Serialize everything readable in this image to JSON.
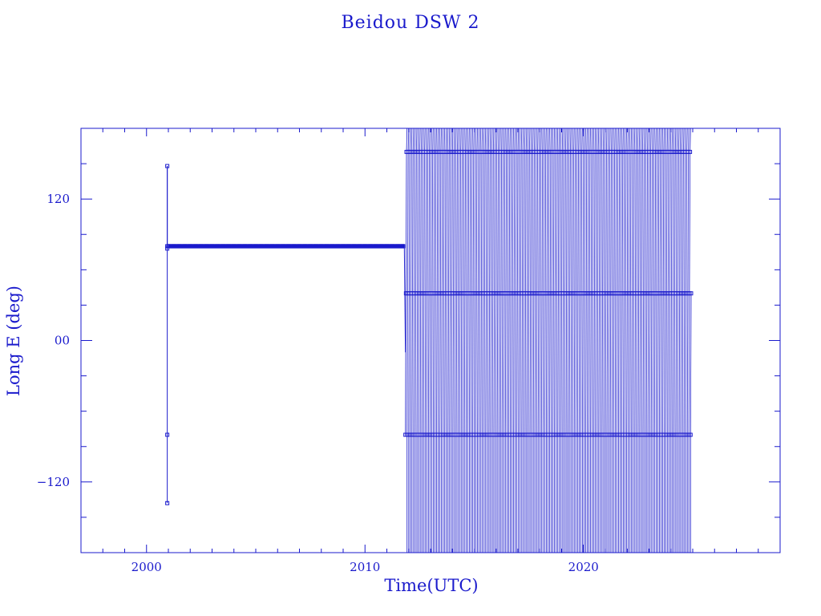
{
  "chart_data": {
    "type": "scatter",
    "title": "Beidou DSW 2",
    "xlabel": "Time(UTC)",
    "ylabel": "Long E (deg)",
    "xlim": [
      1997,
      2029
    ],
    "ylim": [
      -180,
      180
    ],
    "x_ticks": [
      2000,
      2010,
      2020
    ],
    "x_tick_labels": [
      "2000",
      "2010",
      "2020"
    ],
    "y_ticks": [
      -120,
      0,
      120
    ],
    "y_tick_labels": [
      "−120",
      "00",
      "120"
    ],
    "grid": false,
    "marker": "open-square",
    "line": "connected",
    "color": "#1a1acc",
    "series": [
      {
        "segment": "launch",
        "x": [
          2000.95,
          2000.95,
          2000.95,
          2000.95,
          2000.95
        ],
        "y": [
          -138,
          -80,
          148,
          78,
          80
        ]
      },
      {
        "segment": "geostationary",
        "x": [
          2001.0,
          2002.0,
          2004.0,
          2006.0,
          2008.0,
          2010.0,
          2011.8
        ],
        "y": [
          80,
          80,
          80,
          80,
          80,
          80,
          80
        ]
      },
      {
        "segment": "drift",
        "x_start": 2011.85,
        "x_end": 2024.95,
        "y_range": [
          -180,
          180
        ],
        "pattern": "sawtooth"
      }
    ]
  }
}
